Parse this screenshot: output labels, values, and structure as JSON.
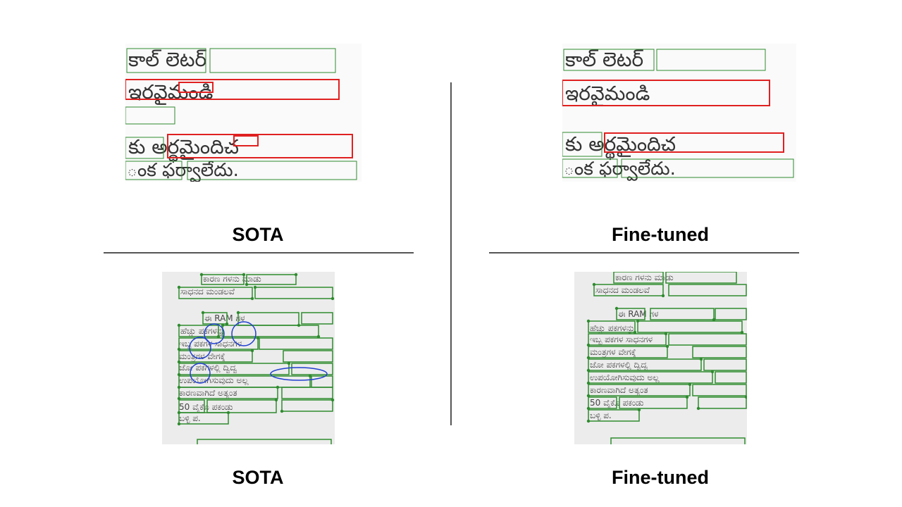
{
  "captions": {
    "top_left": "SOTA",
    "top_right": "Fine-tuned",
    "bottom_left": "SOTA",
    "bottom_right": "Fine-tuned"
  },
  "panels": {
    "telugu_lines": [
      "కాల్ లెటర్",
      "ఇరవైమండి",
      "కు అర్థమైందిచ",
      "ంక ఫర్వాలేదు."
    ],
    "kannada_lines": [
      "ಕಾರಣ ಗಳನು ಮಾಡು",
      "ಸಾಧನದ ಮಂಡಲವೆ",
      "ಈ RAM ಗಳ",
      "ಹೆಚ್ಚು ಪಕಗಳನ್ನು",
      "ಇಬ್ಬ ಪಕಗಳ ಸಾಧನಗಳ",
      "ಮಂತ್ರಗಳ ವೇಗಕ್ಕೆ",
      "ಜೋ ಪಕಗಳಲ್ಲಿ ದ್ವಿದ್ವ",
      "ಉಪಯೋಗಿಸುವುದು ಅಲ್ಲ",
      "ಕಾರಣವಾಗಿದೆ ಅತ್ಯಂತ",
      "50 ವೈಕೊ ಪಕಂಡು",
      "ಬಳ್ಳಿ ಪ."
    ],
    "kannada_ram": "RAM",
    "kannada_fifty": "50"
  },
  "colors": {
    "box_green": "#2e8b2e",
    "error_red": "#e02020",
    "error_blue": "#1f3fd0"
  }
}
